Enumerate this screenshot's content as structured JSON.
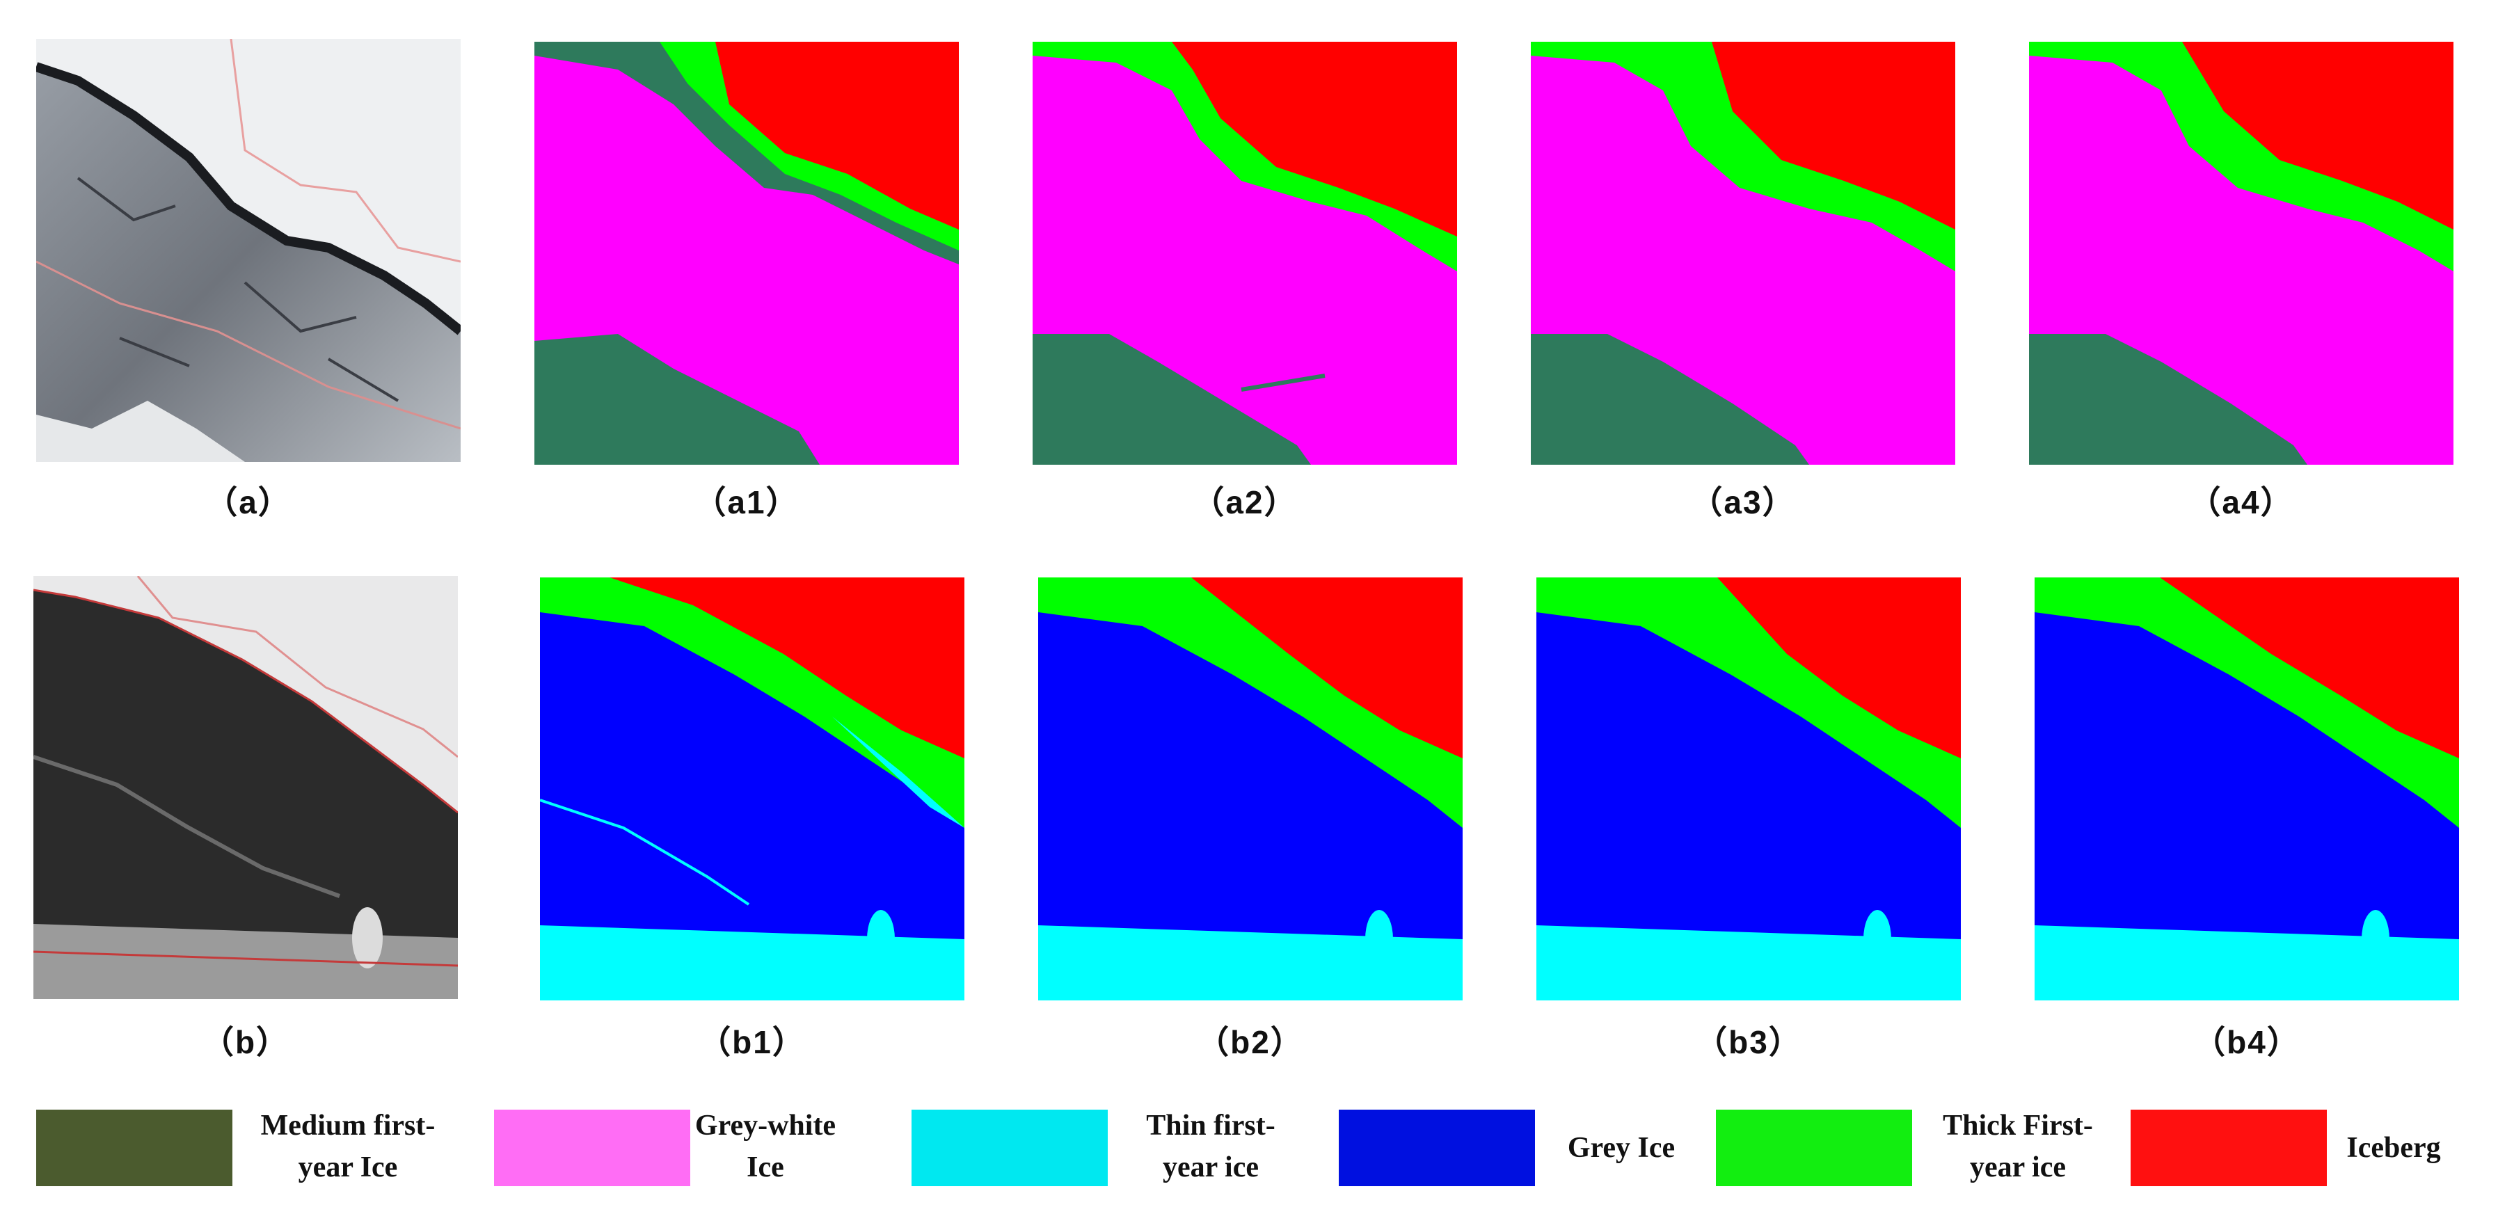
{
  "panels_row_a": [
    {
      "id": "a",
      "caption": "（a）",
      "kind": "optical"
    },
    {
      "id": "a1",
      "caption": "（a1）",
      "kind": "class-a"
    },
    {
      "id": "a2",
      "caption": "（a2）",
      "kind": "class-a"
    },
    {
      "id": "a3",
      "caption": "（a3）",
      "kind": "class-a"
    },
    {
      "id": "a4",
      "caption": "（a4）",
      "kind": "class-a"
    }
  ],
  "panels_row_b": [
    {
      "id": "b",
      "caption": "（b）",
      "kind": "sar"
    },
    {
      "id": "b1",
      "caption": "（b1）",
      "kind": "class-b"
    },
    {
      "id": "b2",
      "caption": "（b2）",
      "kind": "class-b"
    },
    {
      "id": "b3",
      "caption": "（b3）",
      "kind": "class-b"
    },
    {
      "id": "b4",
      "caption": "（b4）",
      "kind": "class-b"
    }
  ],
  "legend": [
    {
      "label": "Medium first-\nyear Ice",
      "color": "#4b5b2e"
    },
    {
      "label": "Grey-white\nIce",
      "color": "#ff6df5"
    },
    {
      "label": "Thin first-\nyear ice",
      "color": "#00e8f0"
    },
    {
      "label": "Grey Ice",
      "color": "#0010e0"
    },
    {
      "label": "Thick First-\nyear ice",
      "color": "#12ee10"
    },
    {
      "label": "Iceberg",
      "color": "#ff1010"
    }
  ],
  "colors": {
    "medium_first_year": "#2e7a5c",
    "grey_white": "#ff00ff",
    "thin_first_year": "#00ffff",
    "grey": "#0000ff",
    "thick_first_year": "#00ff00",
    "iceberg": "#ff0000"
  }
}
